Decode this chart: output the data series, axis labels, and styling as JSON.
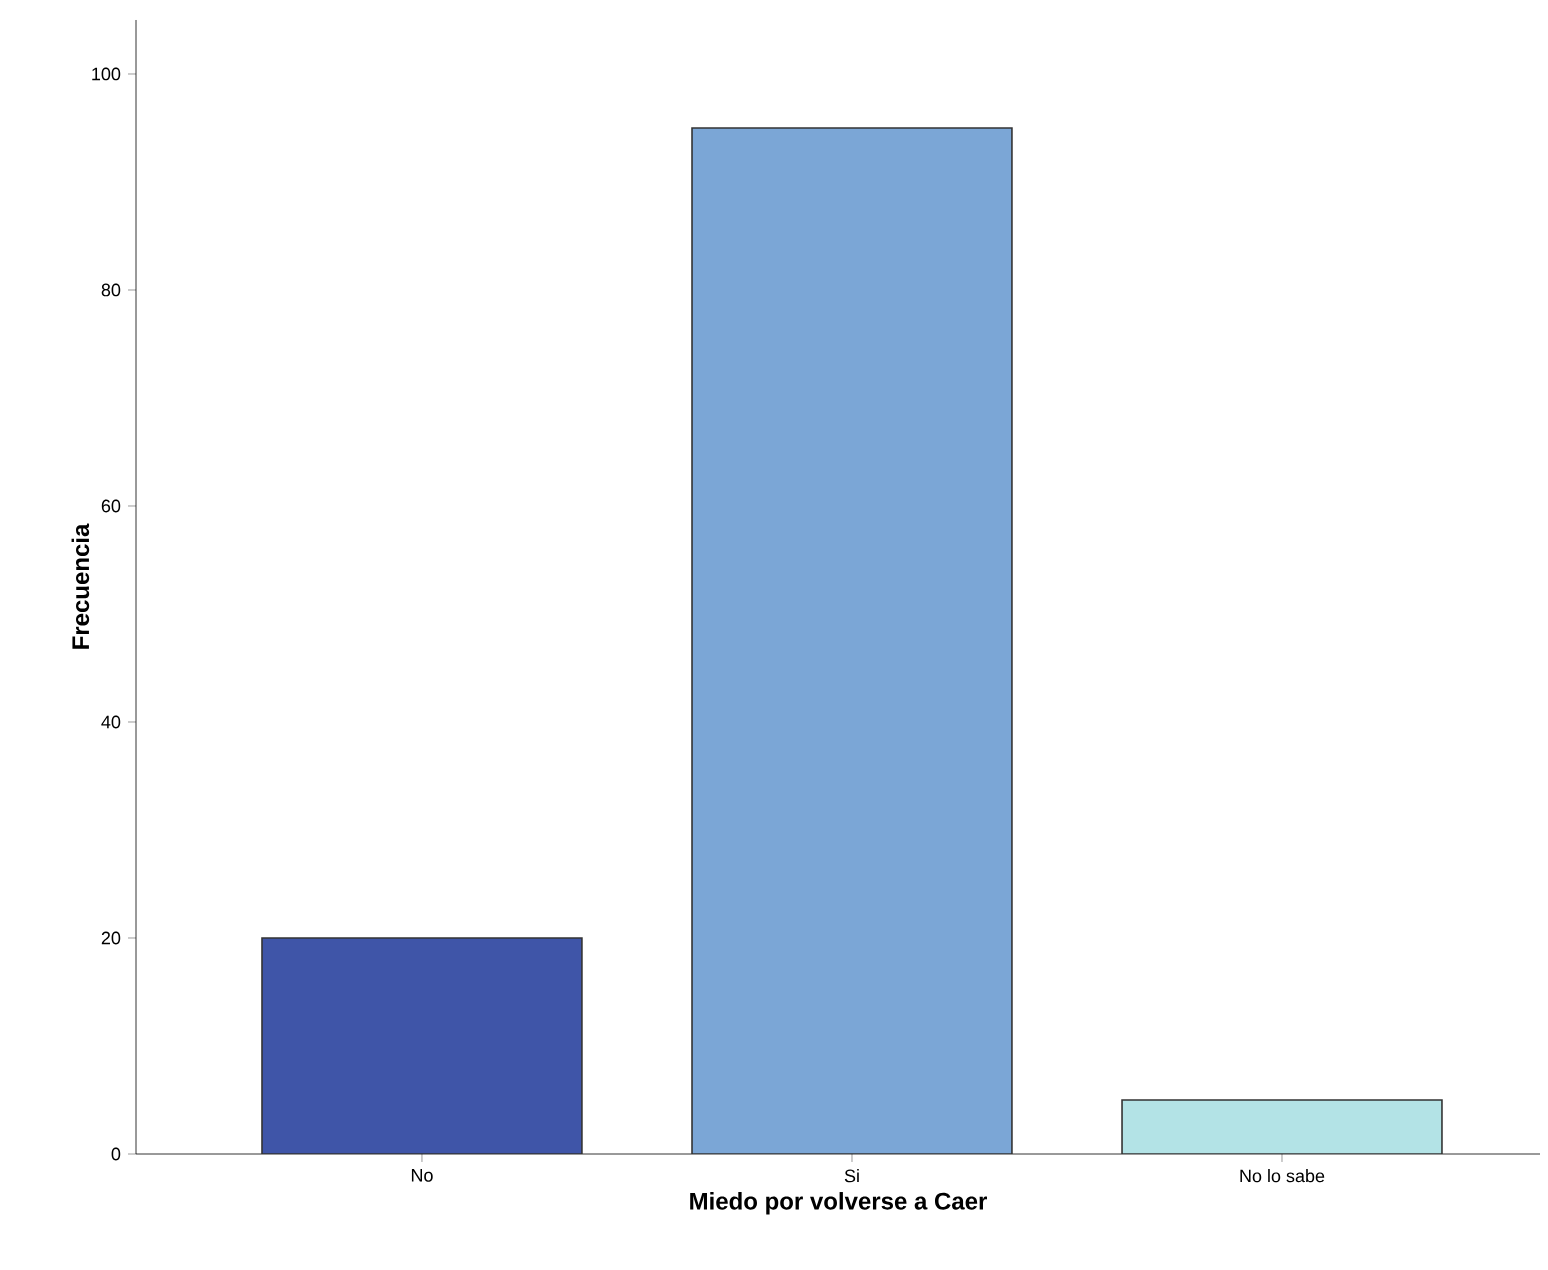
{
  "chart_data": {
    "type": "bar",
    "xlabel": "Miedo por volverse a Caer",
    "ylabel": "Frecuencia",
    "categories": [
      "No",
      "Si",
      "No lo sabe"
    ],
    "values": [
      20,
      95,
      5
    ],
    "colors": [
      "#3f55a8",
      "#7ba6d6",
      "#b3e3e6"
    ],
    "ylim": [
      0,
      105
    ],
    "yticks": [
      0,
      20,
      40,
      60,
      80,
      100
    ]
  }
}
